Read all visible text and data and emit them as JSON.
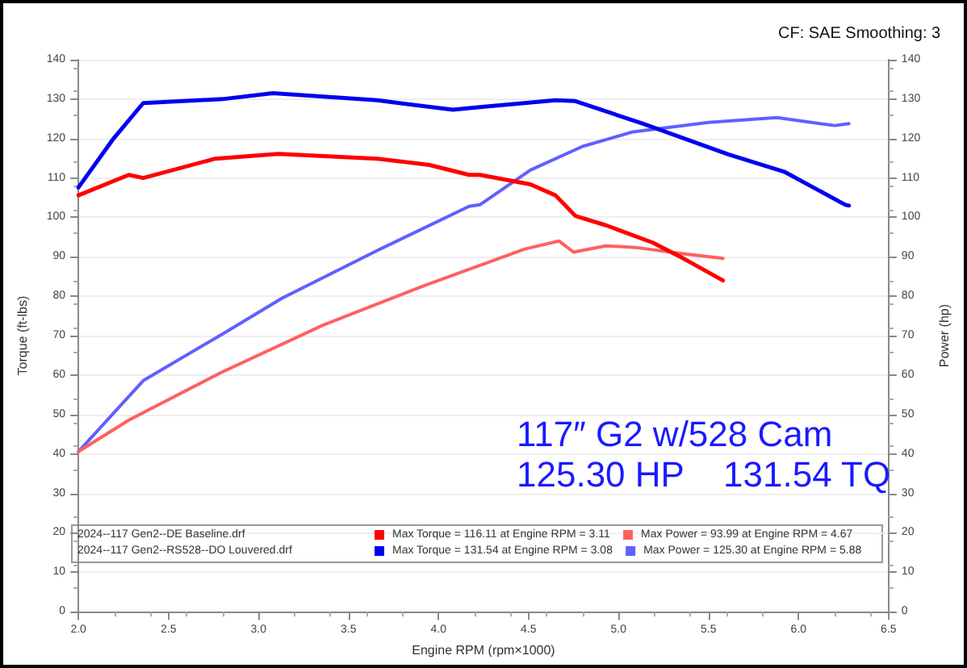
{
  "chart_data": {
    "type": "line",
    "xlabel": "Engine RPM (rpm×1000)",
    "ylabel": "Torque (ft-lbs)",
    "y2label": "Power (hp)",
    "annotations": [
      "CF: SAE Smoothing: 3",
      "117″ G2 w/528 Cam",
      "125.30 HP    131.54 TQ",
      "2024--117 Gen2--DE Baseline.drf",
      "2024--117 Gen2--RS528--DO Louvered.drf"
    ],
    "xlim": [
      2,
      6.5
    ],
    "xticks": [
      {
        "value": 2,
        "label": "2.0"
      },
      2.5,
      {
        "value": 3,
        "label": "3.0"
      },
      3.5,
      {
        "value": 4,
        "label": "4.0"
      },
      4.5,
      {
        "value": 5,
        "label": "5.0"
      },
      5.5,
      {
        "value": 6,
        "label": "6.0"
      },
      6.5
    ],
    "ylim": [
      0,
      140
    ],
    "yticks": [
      0,
      10,
      20,
      30,
      40,
      50,
      60,
      70,
      80,
      90,
      100,
      110,
      120,
      130,
      140
    ],
    "y2lim": [
      0,
      140
    ],
    "y2ticks": [
      0,
      10,
      20,
      30,
      40,
      50,
      60,
      70,
      80,
      90,
      100,
      110,
      120,
      130,
      140
    ],
    "grid": "y",
    "legend": "bottom",
    "marker": "none",
    "line_style": "solid",
    "series": [
      {
        "name": "Max Torque = 116.11 at Engine RPM = 3.11",
        "color": "#ff0000",
        "x": [
          2.0,
          2.28,
          2.36,
          2.76,
          3.11,
          3.66,
          3.95,
          4.17,
          4.23,
          4.51,
          4.65,
          4.76,
          4.93,
          5.19,
          5.36,
          5.58
        ],
        "values": [
          105.6,
          110.8,
          110,
          114.9,
          116.1,
          114.9,
          113.3,
          110.8,
          110.8,
          108.4,
          105.6,
          100.4,
          98,
          93.6,
          89.6,
          84
        ]
      },
      {
        "name": "Max Power = 93.99 at Engine RPM = 4.67",
        "color": "#ff6060",
        "axis": "y2",
        "x": [
          2.0,
          2.28,
          2.79,
          3.36,
          3.92,
          4.48,
          4.67,
          4.75,
          4.93,
          5.09,
          5.36,
          5.58
        ],
        "values": [
          40.6,
          48.6,
          60.6,
          72.7,
          82.7,
          92,
          94,
          91.2,
          92.8,
          92.4,
          90.8,
          89.6
        ]
      },
      {
        "name": "Max Torque = 131.54 at Engine RPM = 3.08",
        "color": "#0000ee",
        "x": [
          2.0,
          2.19,
          2.36,
          2.8,
          3.08,
          3.66,
          4.08,
          4.23,
          4.65,
          4.76,
          5.14,
          5.61,
          5.92,
          6.26,
          6.28
        ],
        "values": [
          107.6,
          119.7,
          129,
          130,
          131.5,
          129.7,
          127.3,
          128,
          129.7,
          129.5,
          123.7,
          116,
          111.6,
          103.2,
          103
        ]
      },
      {
        "name": "Max Power = 125.30 at Engine RPM = 5.88",
        "color": "#6060ff",
        "axis": "y2",
        "x": [
          2.0,
          2.36,
          2.81,
          3.13,
          3.66,
          4.17,
          4.23,
          4.51,
          4.8,
          5.08,
          5.5,
          5.88,
          6.2,
          6.28
        ],
        "values": [
          40.6,
          58.6,
          70.7,
          79.5,
          91.6,
          102.8,
          103.2,
          112,
          118,
          121.7,
          124.1,
          125.3,
          123.3,
          123.8
        ]
      }
    ]
  }
}
